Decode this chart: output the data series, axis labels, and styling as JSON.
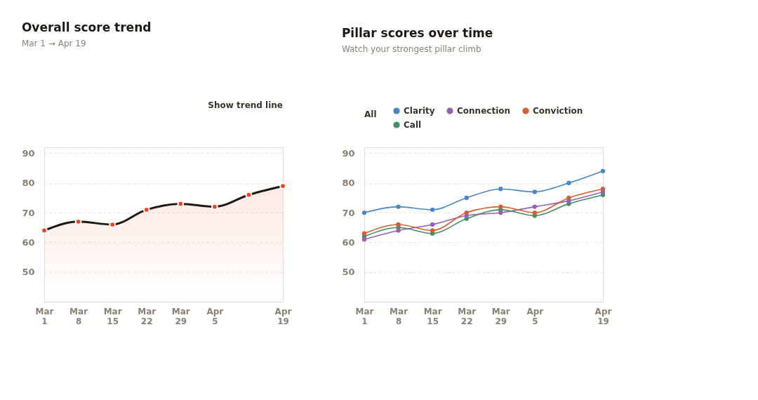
{
  "chart_data": [
    {
      "type": "area",
      "title": "Overall score trend",
      "subtitle": "Mar 1 → Apr 19",
      "annotations": [
        "Show trend line"
      ],
      "categories": [
        "Mar 1",
        "Mar 8",
        "Mar 15",
        "Mar 22",
        "Mar 29",
        "Apr 5",
        null,
        "Apr 19"
      ],
      "series": [
        {
          "color": "#1e1915",
          "colors": [
            "#f2431e",
            "#f2431e",
            "#f2431e",
            "#f2431e",
            "#f2431e",
            "#f2431e",
            "#f2431e",
            "#f2431e"
          ],
          "values": [
            64,
            67,
            66,
            71,
            73,
            72,
            76,
            79
          ]
        }
      ],
      "ylim": [
        40,
        92
      ],
      "yticks": [
        50,
        60,
        70,
        80,
        90
      ],
      "grid": "y",
      "marker": "circle",
      "legend": false
    },
    {
      "type": "line",
      "title": "Pillar scores over time",
      "subtitle": "Watch your strongest pillar climb",
      "annotations": [
        "All"
      ],
      "categories": [
        "Mar 1",
        "Mar 8",
        "Mar 15",
        "Mar 22",
        "Mar 29",
        "Apr 5",
        null,
        "Apr 19"
      ],
      "series": [
        {
          "name": "Clarity",
          "color": "#4a86c5",
          "values": [
            70,
            72,
            71,
            75,
            78,
            77,
            80,
            84
          ]
        },
        {
          "name": "Connection",
          "color": "#9461b4",
          "values": [
            61,
            64,
            66,
            69,
            70,
            72,
            74,
            77
          ]
        },
        {
          "name": "Conviction",
          "color": "#d4602f",
          "values": [
            63,
            66,
            64,
            70,
            72,
            70,
            75,
            78
          ]
        },
        {
          "name": "Call",
          "color": "#458d62",
          "values": [
            62,
            65,
            63,
            68,
            71,
            69,
            73,
            76
          ]
        }
      ],
      "ylim": [
        40,
        92
      ],
      "yticks": [
        50,
        60,
        70,
        80,
        90
      ],
      "grid": "y",
      "marker": "circle",
      "legend": "top left"
    }
  ]
}
